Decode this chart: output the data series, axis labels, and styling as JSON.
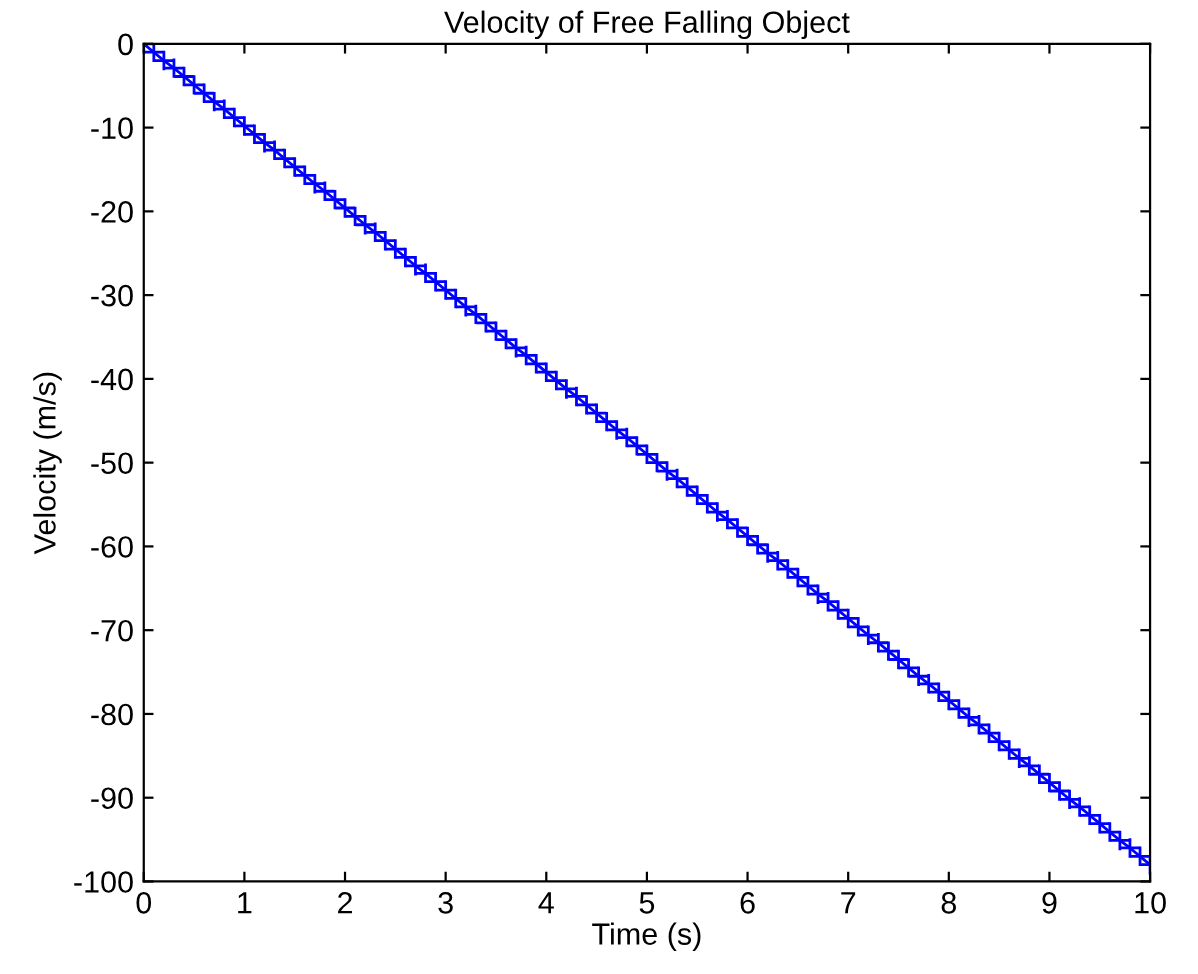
{
  "chart_data": {
    "type": "line",
    "title": "Velocity of Free Falling Object",
    "xlabel": "Time (s)",
    "ylabel": "Velocity (m/s)",
    "x": [
      0,
      0.1,
      0.2,
      0.3,
      0.4,
      0.5,
      0.6,
      0.7,
      0.8,
      0.9,
      1,
      1.1,
      1.2,
      1.3,
      1.4,
      1.5,
      1.6,
      1.7,
      1.8,
      1.9,
      2,
      2.1,
      2.2,
      2.3,
      2.4,
      2.5,
      2.6,
      2.7,
      2.8,
      2.9,
      3,
      3.1,
      3.2,
      3.3,
      3.4,
      3.5,
      3.6,
      3.7,
      3.8,
      3.9,
      4,
      4.1,
      4.2,
      4.3,
      4.4,
      4.5,
      4.6,
      4.7,
      4.8,
      4.9,
      5,
      5.1,
      5.2,
      5.3,
      5.4,
      5.5,
      5.6,
      5.7,
      5.8,
      5.9,
      6,
      6.1,
      6.2,
      6.3,
      6.4,
      6.5,
      6.6,
      6.7,
      6.8,
      6.9,
      7,
      7.1,
      7.2,
      7.3,
      7.4,
      7.5,
      7.6,
      7.7,
      7.8,
      7.9,
      8,
      8.1,
      8.2,
      8.3,
      8.4,
      8.5,
      8.6,
      8.7,
      8.8,
      8.9,
      9,
      9.1,
      9.2,
      9.3,
      9.4,
      9.5,
      9.6,
      9.7,
      9.8,
      9.9,
      10
    ],
    "series": [
      {
        "color": "#0000ff",
        "values": [
          0,
          -1.0,
          -2.0,
          -2.9,
          -3.9,
          -4.9,
          -5.9,
          -6.9,
          -7.8,
          -8.8,
          -9.8,
          -10.8,
          -11.8,
          -12.7,
          -13.7,
          -14.7,
          -15.7,
          -16.7,
          -17.6,
          -18.6,
          -19.6,
          -20.6,
          -21.6,
          -22.5,
          -23.5,
          -24.5,
          -25.5,
          -26.5,
          -27.4,
          -28.4,
          -29.4,
          -30.4,
          -31.4,
          -32.3,
          -33.3,
          -34.3,
          -35.3,
          -36.3,
          -37.2,
          -38.2,
          -39.2,
          -40.2,
          -41.2,
          -42.1,
          -43.1,
          -44.1,
          -45.1,
          -46.1,
          -47.0,
          -48.0,
          -49.0,
          -50.0,
          -51.0,
          -51.9,
          -52.9,
          -53.9,
          -54.9,
          -55.9,
          -56.8,
          -57.8,
          -58.8,
          -59.8,
          -60.8,
          -61.7,
          -62.7,
          -63.7,
          -64.7,
          -65.7,
          -66.6,
          -67.6,
          -68.6,
          -69.6,
          -70.6,
          -71.5,
          -72.5,
          -73.5,
          -74.5,
          -75.5,
          -76.4,
          -77.4,
          -78.4,
          -79.4,
          -80.4,
          -81.3,
          -82.3,
          -83.3,
          -84.3,
          -85.3,
          -86.2,
          -87.2,
          -88.2,
          -89.2,
          -90.2,
          -91.1,
          -92.1,
          -93.1,
          -94.1,
          -95.1,
          -96.0,
          -97.0,
          -98.0
        ]
      }
    ],
    "xlim": [
      0,
      10
    ],
    "xticks": [
      0,
      1,
      2,
      3,
      4,
      5,
      6,
      7,
      8,
      9,
      10
    ],
    "ylim": [
      -100,
      0
    ],
    "yticks": [
      -100,
      -90,
      -80,
      -70,
      -60,
      -50,
      -40,
      -30,
      -20,
      -10,
      0
    ],
    "marker": "cross",
    "line_style": "solid",
    "grid": false,
    "legend": false
  }
}
